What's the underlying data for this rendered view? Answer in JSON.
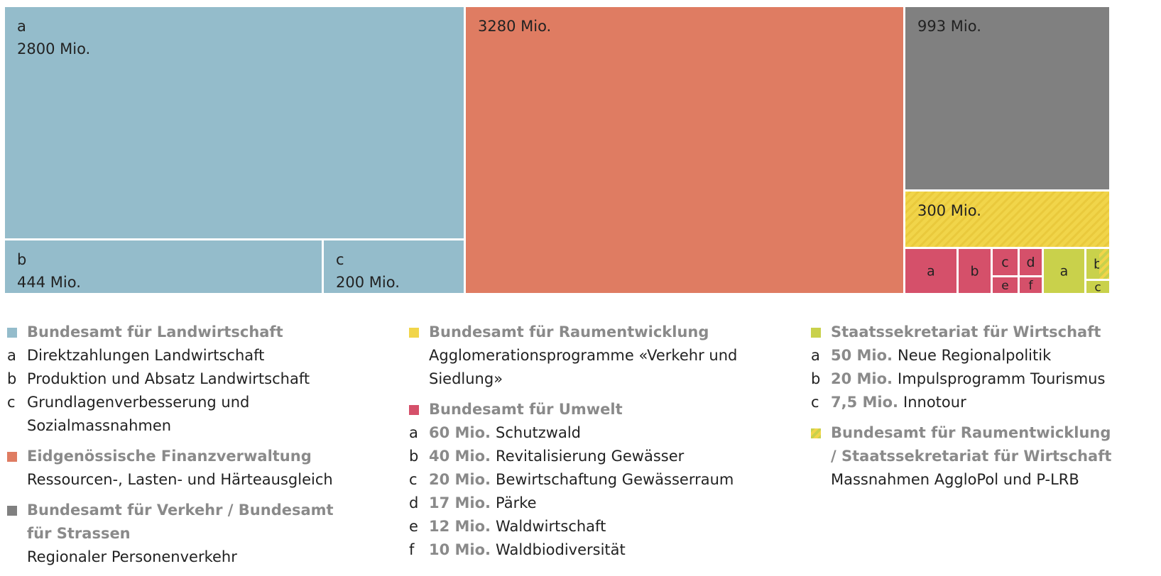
{
  "colors": {
    "landwirtschaft": "#94bccb",
    "finanz": "#df7c62",
    "verkehr": "#808080",
    "raum": "#f1d54a",
    "umwelt": "#d5506a",
    "seco": "#c9d14b"
  },
  "chart_data": {
    "type": "treemap",
    "unit": "Mio.",
    "cells": [
      {
        "group": "landwirtschaft",
        "key": "a",
        "value": 2800,
        "text": "2800 Mio."
      },
      {
        "group": "landwirtschaft",
        "key": "b",
        "value": 444,
        "text": "444 Mio."
      },
      {
        "group": "landwirtschaft",
        "key": "c",
        "value": 200,
        "text": "200 Mio."
      },
      {
        "group": "finanz",
        "key": "",
        "value": 3280,
        "text": "3280 Mio."
      },
      {
        "group": "verkehr",
        "key": "",
        "value": 993,
        "text": "993 Mio."
      },
      {
        "group": "raum",
        "key": "",
        "value": 300,
        "text": "300 Mio."
      },
      {
        "group": "umwelt",
        "key": "a",
        "value": 60,
        "text": ""
      },
      {
        "group": "umwelt",
        "key": "b",
        "value": 40,
        "text": ""
      },
      {
        "group": "umwelt",
        "key": "c",
        "value": 20,
        "text": ""
      },
      {
        "group": "umwelt",
        "key": "d",
        "value": 17,
        "text": ""
      },
      {
        "group": "umwelt",
        "key": "e",
        "value": 12,
        "text": ""
      },
      {
        "group": "umwelt",
        "key": "f",
        "value": 10,
        "text": ""
      },
      {
        "group": "seco",
        "key": "a",
        "value": 50,
        "text": ""
      },
      {
        "group": "seco",
        "key": "b",
        "value": 20,
        "text": ""
      },
      {
        "group": "seco",
        "key": "c",
        "value": 7.5,
        "text": ""
      }
    ]
  },
  "legend": {
    "landwirtschaft": {
      "title": "Bundesamt für Landwirtschaft",
      "items": [
        {
          "letter": "a",
          "desc": "Direktzahlungen Landwirtschaft"
        },
        {
          "letter": "b",
          "desc": "Produktion und Absatz Landwirtschaft"
        },
        {
          "letter": "c",
          "desc": "Grundlagenverbesserung und Sozialmassnahmen"
        }
      ]
    },
    "finanz": {
      "title": "Eidgenössische Finanzverwaltung",
      "desc": "Ressourcen-, Lasten- und Härteausgleich"
    },
    "verkehr": {
      "title": "Bundesamt für Verkehr / Bundesamt für Strassen",
      "desc": "Regionaler Personenverkehr"
    },
    "raum": {
      "title": "Bundesamt für Raumentwicklung",
      "desc": "Agglomerationsprogramme «Verkehr und Siedlung»"
    },
    "umwelt": {
      "title": "Bundesamt für Umwelt",
      "items": [
        {
          "letter": "a",
          "amount": "60 Mio.",
          "desc": "Schutzwald"
        },
        {
          "letter": "b",
          "amount": "40 Mio.",
          "desc": "Revitalisierung Gewässer"
        },
        {
          "letter": "c",
          "amount": "20 Mio.",
          "desc": "Bewirtschaftung Gewässerraum"
        },
        {
          "letter": "d",
          "amount": "17 Mio.",
          "desc": "Pärke"
        },
        {
          "letter": "e",
          "amount": "12 Mio.",
          "desc": "Waldwirtschaft"
        },
        {
          "letter": "f",
          "amount": "10 Mio.",
          "desc": "Waldbiodiversität"
        }
      ]
    },
    "seco": {
      "title": "Staatssekretariat für Wirtschaft",
      "items": [
        {
          "letter": "a",
          "amount": "50 Mio.",
          "desc": "Neue Regionalpolitik"
        },
        {
          "letter": "b",
          "amount": "20 Mio.",
          "desc": "Impulsprogramm Tourismus"
        },
        {
          "letter": "c",
          "amount": "7,5 Mio.",
          "desc": "Innotour"
        }
      ]
    },
    "raum_seco": {
      "title": "Bundesamt für Raumentwicklung / Staatssekretariat für Wirtschaft",
      "desc": "Massnahmen AggloPol und P-LRB"
    }
  }
}
